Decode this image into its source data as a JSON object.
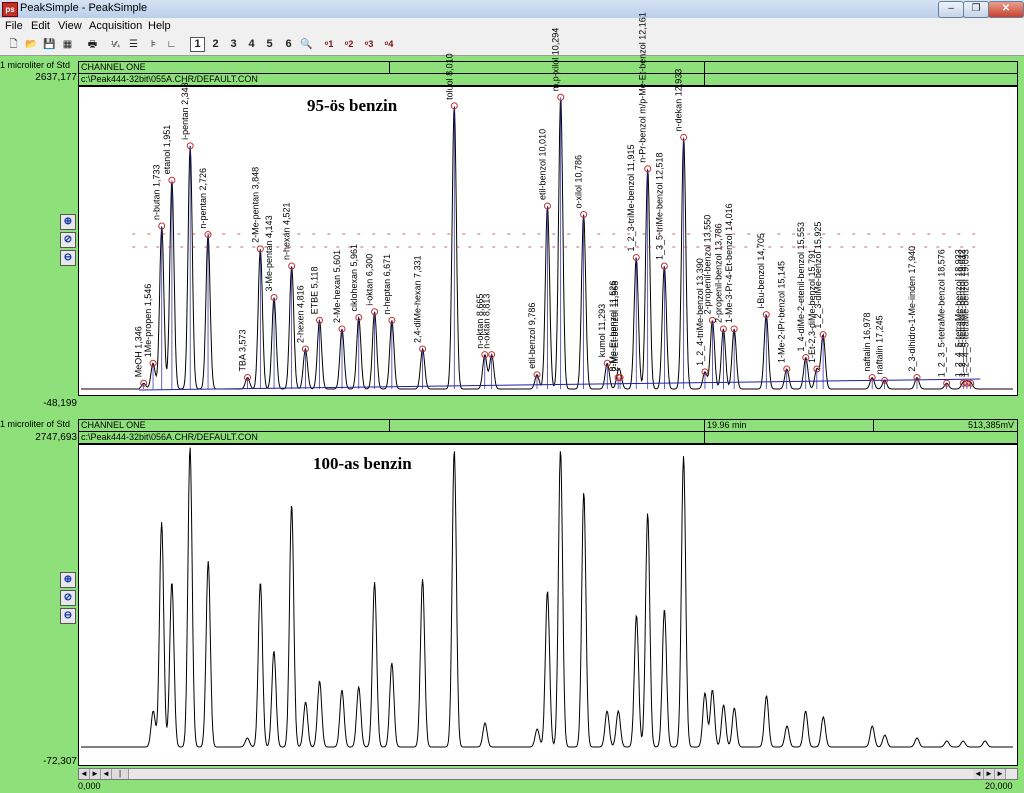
{
  "window": {
    "title": "PeakSimple - PeakSimple",
    "icon": "peaksimple-app-icon",
    "controls": [
      "–",
      "❐",
      "✕"
    ]
  },
  "menu": [
    "File",
    "Edit",
    "View",
    "Acquisition",
    "Help"
  ],
  "toolbar": {
    "icons": [
      "new-file-icon",
      "open-folder-icon",
      "save-icon",
      "save-all-icon",
      "print-icon",
      "integration-icon",
      "report-icon",
      "component-table-icon",
      "axis-icon"
    ],
    "channel_buttons": [
      "1",
      "2",
      "3",
      "4",
      "5",
      "6"
    ],
    "pressed_channel": "1",
    "magnifier_icon": "magnifier-icon",
    "detector_buttons": [
      "1",
      "2",
      "3",
      "4"
    ]
  },
  "panel1": {
    "y_label": "1 microliter of Std",
    "y_max": "2637,177",
    "y_min": "-48,199",
    "channel": "CHANNEL ONE",
    "file": "c:\\Peak444-32bit\\055A.CHR/DEFAULT.CON",
    "annotation": "95-ös benzin",
    "peaks": [
      {
        "label": "MeOH 1,346",
        "t": 1.346,
        "h": 0.02
      },
      {
        "label": "1Me-propen 1,546",
        "t": 1.546,
        "h": 0.09
      },
      {
        "label": "n-butan 1,733",
        "t": 1.733,
        "h": 0.57
      },
      {
        "label": "etanol 1,951",
        "t": 1.951,
        "h": 0.73
      },
      {
        "label": "i-pentan 2,343",
        "t": 2.343,
        "h": 0.85
      },
      {
        "label": "n-pentan 2,726",
        "t": 2.726,
        "h": 0.54
      },
      {
        "label": "TBA 3,573",
        "t": 3.573,
        "h": 0.04
      },
      {
        "label": "2-Me-pentan 3,848",
        "t": 3.848,
        "h": 0.49
      },
      {
        "label": "3-Me-pentan 4,143",
        "t": 4.143,
        "h": 0.32
      },
      {
        "label": "n-hexan 4,521",
        "t": 4.521,
        "h": 0.43
      },
      {
        "label": "2-hexen 4,816",
        "t": 4.816,
        "h": 0.14
      },
      {
        "label": "ETBE 5,118",
        "t": 5.118,
        "h": 0.24
      },
      {
        "label": "2-Me-hexan 5,601",
        "t": 5.601,
        "h": 0.21
      },
      {
        "label": "ciklohexan 5,961",
        "t": 5.961,
        "h": 0.25
      },
      {
        "label": "i-oktan 6,300",
        "t": 6.3,
        "h": 0.27
      },
      {
        "label": "n-heptan 6,671",
        "t": 6.671,
        "h": 0.24
      },
      {
        "label": "2,4-diMe-hexan 7,331",
        "t": 7.331,
        "h": 0.14
      },
      {
        "label": "toluol 8,010",
        "t": 8.01,
        "h": 0.99
      },
      {
        "label": "n-oktan 8,665",
        "t": 8.665,
        "h": 0.12
      },
      {
        "label": "n-oktan 8,813",
        "t": 8.813,
        "h": 0.12
      },
      {
        "label": "etil-benzol 9,786",
        "t": 9.786,
        "h": 0.05
      },
      {
        "label": "etil-benzol 10,010",
        "t": 10.01,
        "h": 0.64
      },
      {
        "label": "m,p-xilol 10,294",
        "t": 10.294,
        "h": 1.02
      },
      {
        "label": "o-xilol 10,786",
        "t": 10.786,
        "h": 0.61
      },
      {
        "label": "kumol 11,293",
        "t": 11.293,
        "h": 0.09
      },
      {
        "label": "8-Me-Et-benzol 11,526",
        "t": 11.526,
        "h": 0.04
      },
      {
        "label": "2-Me-Et-benzol 11,568",
        "t": 11.568,
        "h": 0.04
      },
      {
        "label": "1_2_3-triMe-benzol 11,915",
        "t": 11.915,
        "h": 0.46
      },
      {
        "label": "n-Pr-benzol m/p-Me-Et-benzol 12,161",
        "t": 12.161,
        "h": 0.77
      },
      {
        "label": "1_3_5-triMe-benzol 12,518",
        "t": 12.518,
        "h": 0.43
      },
      {
        "label": "n-dekan 12,933",
        "t": 12.933,
        "h": 0.88
      },
      {
        "label": "1_2_4-triMe-benzol 13,390",
        "t": 13.39,
        "h": 0.06
      },
      {
        "label": "2-propenil-benzol 13,550",
        "t": 13.55,
        "h": 0.24
      },
      {
        "label": "2-propenil-benzol 13,786",
        "t": 13.786,
        "h": 0.21
      },
      {
        "label": "1-Me-3-Pr-4-Et-benzol 14,016",
        "t": 14.016,
        "h": 0.21
      },
      {
        "label": "i-Bu-benzol 14,705",
        "t": 14.705,
        "h": 0.26
      },
      {
        "label": "1-Me-2-iPr-benzol 15,145",
        "t": 15.145,
        "h": 0.07
      },
      {
        "label": "1_4-diMe-2-etenil-benzol 15,553",
        "t": 15.553,
        "h": 0.11
      },
      {
        "label": "1-Et-2,3-diMe-benzol 15,791",
        "t": 15.791,
        "h": 0.07
      },
      {
        "label": "1_2_3-diMe-benzol 15,925",
        "t": 15.925,
        "h": 0.19
      },
      {
        "label": "naftalin 16,978",
        "t": 16.978,
        "h": 0.04
      },
      {
        "label": "naftalin 17,245",
        "t": 17.245,
        "h": 0.03
      },
      {
        "label": "2_3-dihidro-1-Me-iinden 17,940",
        "t": 17.94,
        "h": 0.04
      },
      {
        "label": "1_2_3_5-tetraMe-benzol 18,576",
        "t": 18.576,
        "h": 0.02
      },
      {
        "label": "1_2_4_5-tetraMe-benzol 18,933",
        "t": 18.933,
        "h": 0.02
      },
      {
        "label": "1_2_4_5-tetraMe-benzol 19,012",
        "t": 19.012,
        "h": 0.02
      },
      {
        "label": "1_2_4_5-tetraMe-benzol 19,093",
        "t": 19.093,
        "h": 0.02
      }
    ]
  },
  "panel2": {
    "y_label": "1 microliter of Std",
    "y_max": "2747,693",
    "y_min": "-72,307",
    "channel": "CHANNEL ONE",
    "file": "c:\\Peak444-32bit\\056A.CHR/DEFAULT.CON",
    "cursor_time": "19.96 min",
    "cursor_value": "513,385mV",
    "annotation": "100-as benzin",
    "peaks": [
      {
        "t": 1.55,
        "h": 0.12
      },
      {
        "t": 1.73,
        "h": 0.75
      },
      {
        "t": 1.95,
        "h": 0.55
      },
      {
        "t": 2.34,
        "h": 1.0
      },
      {
        "t": 2.73,
        "h": 0.62
      },
      {
        "t": 3.57,
        "h": 0.03
      },
      {
        "t": 3.85,
        "h": 0.55
      },
      {
        "t": 4.14,
        "h": 0.32
      },
      {
        "t": 4.52,
        "h": 0.81
      },
      {
        "t": 4.82,
        "h": 0.15
      },
      {
        "t": 5.12,
        "h": 0.22
      },
      {
        "t": 5.6,
        "h": 0.19
      },
      {
        "t": 5.96,
        "h": 0.2
      },
      {
        "t": 6.3,
        "h": 0.55
      },
      {
        "t": 6.67,
        "h": 0.28
      },
      {
        "t": 7.33,
        "h": 0.56
      },
      {
        "t": 8.01,
        "h": 0.99
      },
      {
        "t": 8.67,
        "h": 0.08
      },
      {
        "t": 9.79,
        "h": 0.06
      },
      {
        "t": 10.01,
        "h": 0.52
      },
      {
        "t": 10.29,
        "h": 0.99
      },
      {
        "t": 10.79,
        "h": 0.85
      },
      {
        "t": 11.29,
        "h": 0.12
      },
      {
        "t": 11.53,
        "h": 0.12
      },
      {
        "t": 11.92,
        "h": 0.44
      },
      {
        "t": 12.16,
        "h": 0.78
      },
      {
        "t": 12.52,
        "h": 0.46
      },
      {
        "t": 12.93,
        "h": 0.97
      },
      {
        "t": 13.39,
        "h": 0.18
      },
      {
        "t": 13.55,
        "h": 0.19
      },
      {
        "t": 13.79,
        "h": 0.14
      },
      {
        "t": 14.02,
        "h": 0.13
      },
      {
        "t": 14.71,
        "h": 0.17
      },
      {
        "t": 15.15,
        "h": 0.07
      },
      {
        "t": 15.55,
        "h": 0.12
      },
      {
        "t": 15.93,
        "h": 0.1
      },
      {
        "t": 16.98,
        "h": 0.07
      },
      {
        "t": 17.25,
        "h": 0.04
      },
      {
        "t": 17.94,
        "h": 0.03
      },
      {
        "t": 18.58,
        "h": 0.02
      },
      {
        "t": 18.93,
        "h": 0.02
      },
      {
        "t": 19.4,
        "h": 0.02
      }
    ]
  },
  "x_axis": {
    "min": "0,000",
    "max": "20,000",
    "min_value": 0,
    "max_value": 20
  },
  "zoom_buttons": [
    "⊕",
    "⊘",
    "⊖"
  ],
  "scroll_buttons": [
    "◄",
    "►",
    "|"
  ]
}
